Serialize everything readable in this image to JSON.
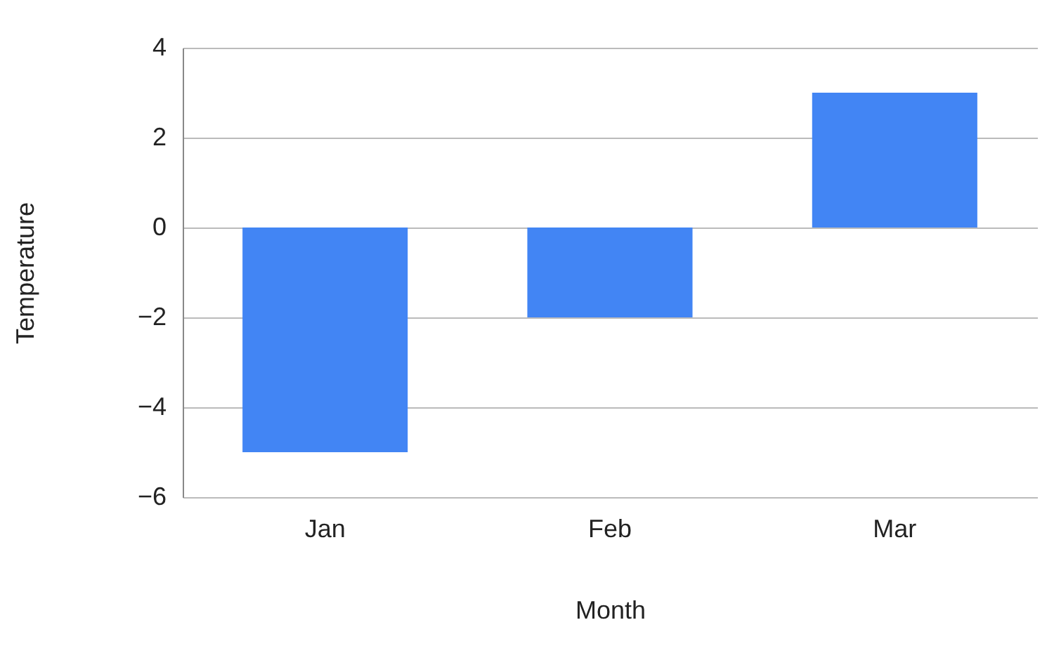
{
  "chart_data": {
    "type": "bar",
    "xlabel": "Month",
    "ylabel": "Temperature",
    "categories": [
      "Jan",
      "Feb",
      "Mar"
    ],
    "series": [
      {
        "color": "#4285f4",
        "values": [
          -5,
          -2,
          3
        ]
      }
    ],
    "ylim": [
      -6,
      4
    ],
    "yticks": [
      -6,
      -4,
      -2,
      0,
      2,
      4
    ],
    "grid": "y",
    "legend": false
  }
}
